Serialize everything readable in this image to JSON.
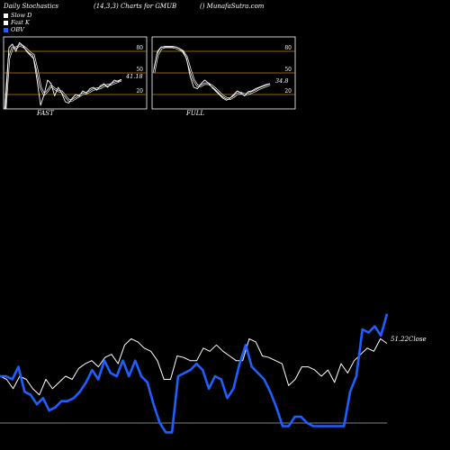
{
  "header": {
    "left": "Daily Stochastics",
    "center": "(14,3,3) Charts for GMUB",
    "right": "() MunafaSutra.com"
  },
  "legend": [
    {
      "label": "Slow  D",
      "color": "#ffffff"
    },
    {
      "label": "Fast K",
      "color": "#ffffff"
    },
    {
      "label": "OBV",
      "color": "#1f5fff"
    }
  ],
  "colors": {
    "grid": "#c87f0a",
    "obv": "#1f5fff",
    "line": "#ffffff",
    "background": "#000000"
  },
  "chart_data": [
    {
      "type": "line",
      "title": "FAST",
      "ylim": [
        0,
        100
      ],
      "gridlines": [
        20,
        50,
        80
      ],
      "gridline_labels": [
        "80",
        "50",
        "20"
      ],
      "last_value_label": "41.18",
      "series": [
        {
          "name": "Fast K",
          "values": [
            0,
            85,
            90,
            80,
            92,
            88,
            80,
            75,
            70,
            40,
            5,
            20,
            40,
            35,
            18,
            30,
            22,
            10,
            8,
            15,
            20,
            18,
            25,
            22,
            28,
            30,
            26,
            32,
            35,
            30,
            35,
            40,
            38,
            41
          ]
        },
        {
          "name": "Slow  D",
          "values": [
            0,
            70,
            85,
            85,
            88,
            87,
            83,
            78,
            75,
            55,
            30,
            20,
            25,
            32,
            28,
            25,
            24,
            18,
            12,
            12,
            15,
            18,
            21,
            22,
            24,
            27,
            28,
            29,
            32,
            33,
            34,
            36,
            38,
            40
          ]
        }
      ]
    },
    {
      "type": "line",
      "title": "FULL",
      "ylim": [
        0,
        100
      ],
      "gridlines": [
        20,
        50,
        80
      ],
      "gridline_labels": [
        "80",
        "50",
        "20"
      ],
      "last_value_label": "34.8",
      "series": [
        {
          "name": "Fast K",
          "values": [
            55,
            80,
            86,
            86,
            86,
            86,
            86,
            84,
            80,
            70,
            45,
            30,
            28,
            35,
            40,
            36,
            30,
            25,
            20,
            15,
            12,
            15,
            20,
            25,
            22,
            18,
            24,
            25,
            28,
            30,
            32,
            34,
            35
          ]
        },
        {
          "name": "Slow  D",
          "values": [
            50,
            75,
            84,
            86,
            86,
            86,
            85,
            83,
            80,
            72,
            55,
            40,
            32,
            32,
            35,
            35,
            32,
            28,
            23,
            18,
            15,
            14,
            17,
            21,
            22,
            20,
            21,
            23,
            25,
            28,
            30,
            32,
            34
          ]
        }
      ]
    },
    {
      "type": "line",
      "title": "",
      "close_label": "51.22Close",
      "series": [
        {
          "name": "Close",
          "values": [
            30,
            28,
            22,
            30,
            28,
            22,
            18,
            28,
            22,
            26,
            30,
            28,
            35,
            38,
            40,
            36,
            42,
            44,
            38,
            50,
            54,
            52,
            48,
            46,
            40,
            28,
            28,
            43,
            42,
            40,
            40,
            48,
            46,
            50,
            46,
            43,
            40,
            40,
            54,
            52,
            43,
            42,
            40,
            38,
            24,
            28,
            36,
            36,
            34,
            30,
            34,
            26,
            38,
            32,
            40,
            44,
            48,
            46,
            54,
            51
          ]
        },
        {
          "name": "OBV",
          "values": [
            30,
            30,
            28,
            36,
            20,
            18,
            12,
            16,
            8,
            10,
            14,
            14,
            16,
            20,
            26,
            34,
            28,
            40,
            32,
            30,
            40,
            30,
            40,
            30,
            26,
            12,
            0,
            -6,
            -6,
            30,
            32,
            34,
            38,
            34,
            22,
            30,
            28,
            16,
            22,
            38,
            50,
            36,
            32,
            28,
            20,
            10,
            -2,
            -2,
            4,
            4,
            0,
            -2,
            -2,
            -2,
            -2,
            -2,
            -2,
            20,
            30,
            60,
            58,
            62,
            56,
            70
          ]
        }
      ]
    }
  ]
}
